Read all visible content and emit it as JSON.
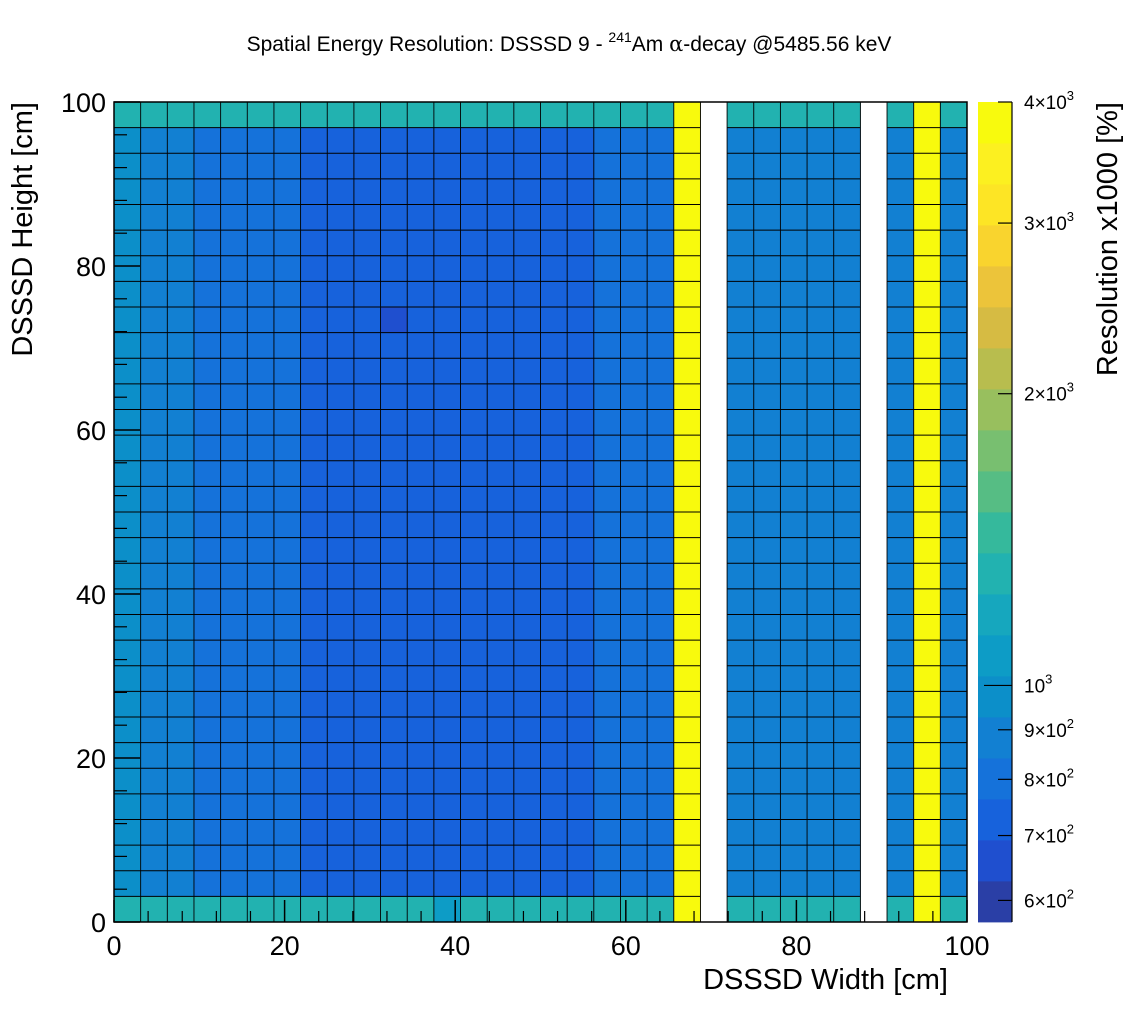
{
  "chart_data": {
    "type": "heatmap",
    "title_main": "Spatial Energy Resolution: DSSSD 9 - ",
    "title_isotope_sup": "241",
    "title_isotope": "Am ",
    "title_alpha": "α",
    "title_rest": "-decay @5485.56 keV",
    "xlabel": "DSSSD Width [cm]",
    "ylabel": "DSSSD Height [cm]",
    "zlabel": "Resolution x1000 [%]",
    "xlim": [
      0,
      100
    ],
    "ylim": [
      0,
      100
    ],
    "zlim": [
      570,
      4000
    ],
    "zscale": "log",
    "grid": true,
    "x_ticks": [
      0,
      20,
      40,
      60,
      80,
      100
    ],
    "y_ticks": [
      0,
      20,
      40,
      60,
      80,
      100
    ],
    "x_tick_labels": [
      "0",
      "20",
      "40",
      "60",
      "80",
      "100"
    ],
    "y_tick_labels": [
      "0",
      "20",
      "40",
      "60",
      "80",
      "100"
    ],
    "z_tick_labels": [
      {
        "value": 4000,
        "mantissa": "4",
        "exp": "3"
      },
      {
        "value": 3000,
        "mantissa": "3",
        "exp": "3"
      },
      {
        "value": 2000,
        "mantissa": "2",
        "exp": "3"
      },
      {
        "value": 1000,
        "mantissa": "",
        "exp": "3"
      },
      {
        "value": 900,
        "mantissa": "9",
        "exp": "2"
      },
      {
        "value": 800,
        "mantissa": "8",
        "exp": "2"
      },
      {
        "value": 700,
        "mantissa": "7",
        "exp": "2"
      },
      {
        "value": 600,
        "mantissa": "6",
        "exp": "2"
      }
    ],
    "x_bins": 32,
    "y_bins": 32,
    "column_profile": [
      1000,
      870,
      850,
      820,
      800,
      780,
      770,
      760,
      760,
      760,
      760,
      760,
      760,
      760,
      760,
      760,
      760,
      760,
      780,
      800,
      820,
      4000,
      null,
      900,
      880,
      870,
      870,
      860,
      null,
      900,
      4000,
      860
    ],
    "edge_rows": {
      "bottom": 1300,
      "top": 1300
    },
    "hot_spots": [
      {
        "col": 9,
        "row": 23,
        "value": 700
      },
      {
        "col": 10,
        "row": 23,
        "value": 690
      },
      {
        "col": 11,
        "row": 23,
        "value": 720
      },
      {
        "col": 12,
        "row": 23,
        "value": 700
      },
      {
        "col": 10,
        "row": 24,
        "value": 720
      },
      {
        "col": 12,
        "row": 24,
        "value": 710
      },
      {
        "col": 12,
        "row": 22,
        "value": 710
      },
      {
        "col": 12,
        "row": 25,
        "value": 720
      },
      {
        "col": 12,
        "row": 27,
        "value": 720
      },
      {
        "col": 12,
        "row": 20,
        "value": 720
      },
      {
        "col": 12,
        "row": 17,
        "value": 715
      },
      {
        "col": 12,
        "row": 16,
        "value": 720
      },
      {
        "col": 10,
        "row": 16,
        "value": 720
      },
      {
        "col": 12,
        "row": 10,
        "value": 725
      },
      {
        "col": 12,
        "row": 3,
        "value": 720
      },
      {
        "col": 12,
        "row": 0,
        "value": 1100
      }
    ],
    "palette": [
      "#2a3fa6",
      "#1f4fcf",
      "#1762dc",
      "#1572da",
      "#1280d2",
      "#0c8fc9",
      "#0d9cc6",
      "#16a7be",
      "#22b2b0",
      "#35b99c",
      "#56bd84",
      "#78bf70",
      "#98bf5e",
      "#b8bd4e",
      "#d6bb43",
      "#ecc43a",
      "#f9d42e",
      "#fde525",
      "#fcf020",
      "#f8fa0d"
    ]
  }
}
